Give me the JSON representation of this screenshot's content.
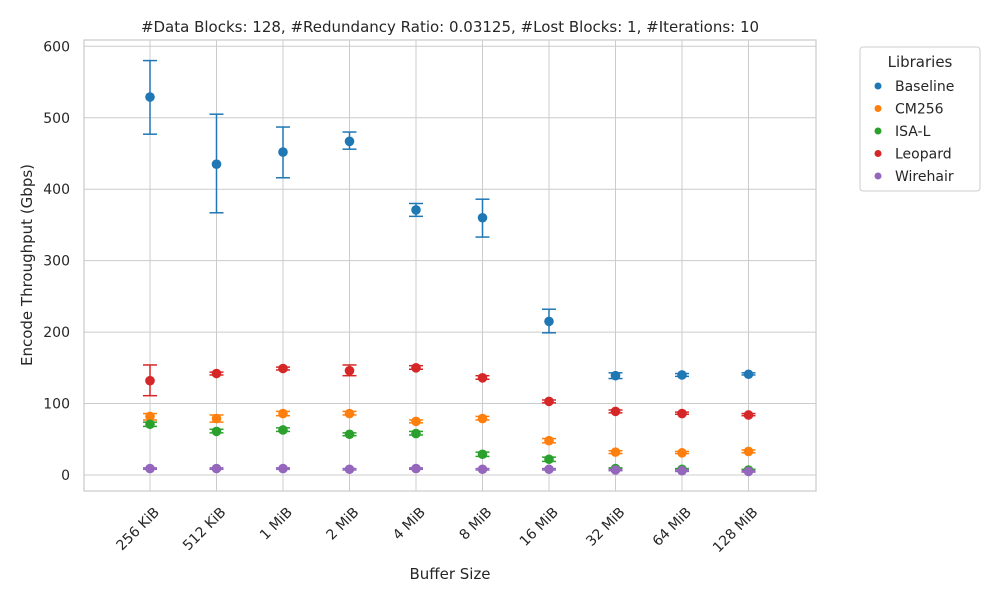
{
  "chart_data": {
    "type": "scatter",
    "title": "#Data Blocks: 128, #Redundancy Ratio: 0.03125, #Lost Blocks: 1, #Iterations: 10",
    "xlabel": "Buffer Size",
    "ylabel": "Encode Throughput (Gbps)",
    "ylim": [
      -22,
      610
    ],
    "yticks": [
      0,
      100,
      200,
      300,
      400,
      500,
      600
    ],
    "categories": [
      "256 KiB",
      "512 KiB",
      "1 MiB",
      "2 MiB",
      "4 MiB",
      "8 MiB",
      "16 MiB",
      "32 MiB",
      "64 MiB",
      "128 MiB"
    ],
    "grid": true,
    "error_bars": true,
    "legend": {
      "title": "Libraries",
      "placement": "outside-top-right"
    },
    "series": [
      {
        "name": "Baseline",
        "color": "#1f77b4",
        "values": [
          529,
          435,
          452,
          467,
          371,
          360,
          215,
          139,
          140,
          141
        ],
        "err_low": [
          477,
          367,
          416,
          456,
          362,
          333,
          199,
          135,
          138,
          140
        ],
        "err_high": [
          580,
          505,
          487,
          480,
          380,
          386,
          232,
          143,
          142,
          143
        ]
      },
      {
        "name": "CM256",
        "color": "#ff7f0e",
        "values": [
          82,
          79,
          86,
          86,
          75,
          79,
          48,
          32,
          31,
          33
        ],
        "err_low": [
          77,
          74,
          83,
          84,
          73,
          77,
          45,
          30,
          30,
          31
        ],
        "err_high": [
          86,
          84,
          89,
          89,
          77,
          82,
          51,
          34,
          33,
          35
        ]
      },
      {
        "name": "ISA-L",
        "color": "#2ca02c",
        "values": [
          71,
          61,
          63,
          57,
          58,
          29,
          22,
          9,
          8,
          7
        ],
        "err_low": [
          68,
          59,
          61,
          55,
          56,
          26,
          19,
          8,
          7,
          6
        ],
        "err_high": [
          74,
          64,
          66,
          59,
          61,
          32,
          25,
          10,
          9,
          8
        ]
      },
      {
        "name": "Leopard",
        "color": "#d62728",
        "values": [
          132,
          142,
          149,
          146,
          150,
          136,
          103,
          89,
          86,
          84
        ],
        "err_low": [
          111,
          140,
          147,
          139,
          148,
          134,
          101,
          87,
          85,
          83
        ],
        "err_high": [
          154,
          144,
          151,
          154,
          153,
          139,
          105,
          91,
          88,
          86
        ]
      },
      {
        "name": "Wirehair",
        "color": "#9467bd",
        "values": [
          9,
          9,
          9,
          8,
          9,
          8,
          8,
          7,
          6,
          5
        ],
        "err_low": [
          8,
          8,
          8,
          7,
          8,
          7,
          7,
          6,
          5,
          4
        ],
        "err_high": [
          10,
          10,
          10,
          9,
          10,
          9,
          9,
          8,
          7,
          6
        ]
      }
    ]
  }
}
